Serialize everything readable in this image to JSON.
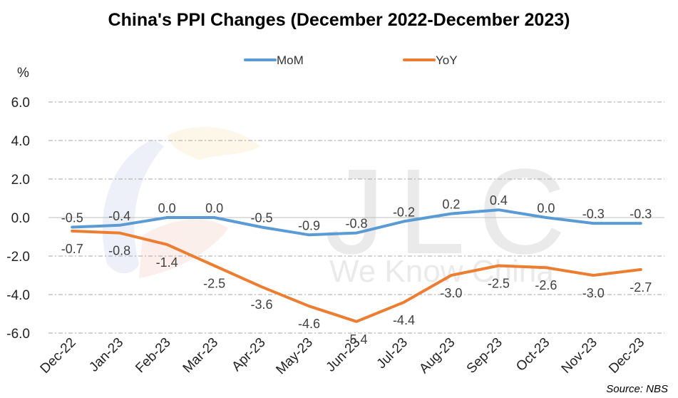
{
  "chart_data": {
    "type": "line",
    "title": "China's PPI Changes (December 2022-December 2023)",
    "ylabel": "%",
    "xlabel": "",
    "categories": [
      "Dec-22",
      "Jan-23",
      "Feb-23",
      "Mar-23",
      "Apr-23",
      "May-23",
      "Jun-23",
      "Jul-23",
      "Aug-23",
      "Sep-23",
      "Oct-23",
      "Nov-23",
      "Dec-23"
    ],
    "series": [
      {
        "name": "MoM",
        "color": "#5b9bd5",
        "values": [
          -0.5,
          -0.4,
          0.0,
          0.0,
          -0.5,
          -0.9,
          -0.8,
          -0.2,
          0.2,
          0.4,
          0.0,
          -0.3,
          -0.3
        ],
        "labels": [
          "-0.5",
          "-0.4",
          "0.0",
          "0.0",
          "-0.5",
          "-0.9",
          "-0.8",
          "-0.2",
          "0.2",
          "0.4",
          "0.0",
          "-0.3",
          "-0.3"
        ]
      },
      {
        "name": "YoY",
        "color": "#ed7d31",
        "values": [
          -0.7,
          -0.8,
          -1.4,
          -2.5,
          -3.6,
          -4.6,
          -5.4,
          -4.4,
          -3.0,
          -2.5,
          -2.6,
          -3.0,
          -2.7
        ],
        "labels": [
          "-0.7",
          "-0.8",
          "-1.4",
          "-2.5",
          "-3.6",
          "-4.6",
          "-5.4",
          "-4.4",
          "-3.0",
          "-2.5",
          "-2.6",
          "-3.0",
          "-2.7"
        ]
      }
    ],
    "ylim": [
      -6,
      6
    ],
    "yticks": [
      6,
      4,
      2,
      0,
      -2,
      -4,
      -6
    ],
    "ytick_labels": [
      "6.0",
      "4.0",
      "2.0",
      "0.0",
      "-2.0",
      "-4.0",
      "-6.0"
    ],
    "grid": true,
    "legend_position": "top-center"
  },
  "watermark": {
    "logo_text": "JLC",
    "tagline": "We Know China"
  },
  "source": "Source: NBS"
}
